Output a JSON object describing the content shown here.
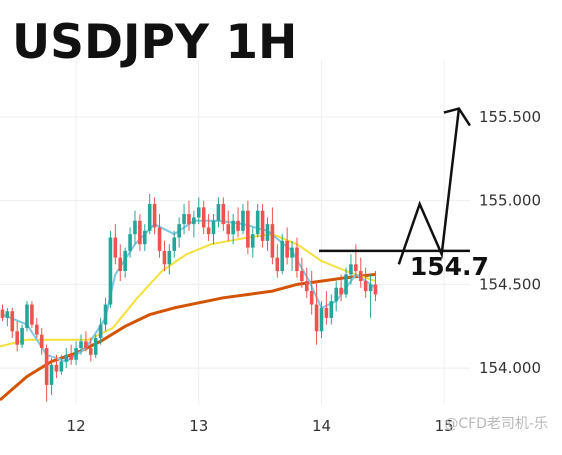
{
  "chart_data": {
    "type": "candlestick",
    "title": "USDJPY 1H",
    "x_ticks": [
      "12",
      "13",
      "14",
      "15"
    ],
    "y_ticks": [
      155.5,
      155.0,
      154.5,
      154.0
    ],
    "y_tick_labels": [
      "155.500",
      "155.000",
      "154.500",
      "154.000"
    ],
    "ylim": [
      153.78,
      155.84
    ],
    "xlim": [
      11.38,
      15.96
    ],
    "grid": true,
    "colors": {
      "up": "#26a69a",
      "down": "#ef5350",
      "ema_fast": "#7ec8e3",
      "ema_mid": "#f3e03a",
      "ema_slow": "#d35400"
    },
    "annotations": {
      "resistance_level": 154.7,
      "resistance_label": "154.7",
      "projection": [
        [
          14.63,
          154.62
        ],
        [
          14.8,
          154.98
        ],
        [
          14.98,
          154.68
        ],
        [
          15.12,
          155.55
        ]
      ]
    },
    "candles": [
      [
        11.4,
        154.35,
        154.38,
        154.28,
        154.3
      ],
      [
        11.44,
        154.3,
        154.36,
        154.25,
        154.34
      ],
      [
        11.48,
        154.34,
        154.36,
        154.18,
        154.22
      ],
      [
        11.52,
        154.22,
        154.28,
        154.1,
        154.14
      ],
      [
        11.56,
        154.14,
        154.26,
        154.12,
        154.24
      ],
      [
        11.6,
        154.24,
        154.4,
        154.22,
        154.38
      ],
      [
        11.64,
        154.38,
        154.4,
        154.24,
        154.26
      ],
      [
        11.68,
        154.26,
        154.3,
        154.18,
        154.2
      ],
      [
        11.72,
        154.2,
        154.24,
        154.08,
        154.12
      ],
      [
        11.76,
        154.12,
        154.14,
        153.8,
        153.9
      ],
      [
        11.8,
        153.9,
        154.06,
        153.84,
        154.02
      ],
      [
        11.84,
        154.02,
        154.08,
        153.94,
        153.98
      ],
      [
        11.88,
        153.98,
        154.08,
        153.96,
        154.04
      ],
      [
        11.92,
        154.04,
        154.12,
        154.0,
        154.08
      ],
      [
        11.96,
        154.08,
        154.14,
        154.02,
        154.05
      ],
      [
        12.0,
        154.05,
        154.16,
        154.02,
        154.12
      ],
      [
        12.04,
        154.12,
        154.2,
        154.08,
        154.16
      ],
      [
        12.08,
        154.16,
        154.22,
        154.1,
        154.12
      ],
      [
        12.12,
        154.12,
        154.18,
        154.04,
        154.08
      ],
      [
        12.16,
        154.08,
        154.2,
        154.06,
        154.18
      ],
      [
        12.2,
        154.18,
        154.3,
        154.14,
        154.26
      ],
      [
        12.24,
        154.26,
        154.42,
        154.22,
        154.38
      ],
      [
        12.28,
        154.38,
        154.82,
        154.36,
        154.78
      ],
      [
        12.32,
        154.78,
        154.86,
        154.62,
        154.66
      ],
      [
        12.36,
        154.66,
        154.74,
        154.52,
        154.58
      ],
      [
        12.4,
        154.58,
        154.72,
        154.54,
        154.7
      ],
      [
        12.44,
        154.7,
        154.84,
        154.66,
        154.8
      ],
      [
        12.48,
        154.8,
        154.94,
        154.74,
        154.88
      ],
      [
        12.52,
        154.88,
        154.92,
        154.7,
        154.74
      ],
      [
        12.56,
        154.74,
        154.86,
        154.7,
        154.82
      ],
      [
        12.6,
        154.82,
        155.04,
        154.8,
        154.98
      ],
      [
        12.64,
        154.98,
        155.02,
        154.8,
        154.84
      ],
      [
        12.68,
        154.84,
        154.92,
        154.66,
        154.7
      ],
      [
        12.72,
        154.7,
        154.76,
        154.58,
        154.62
      ],
      [
        12.76,
        154.62,
        154.74,
        154.56,
        154.7
      ],
      [
        12.8,
        154.7,
        154.82,
        154.66,
        154.78
      ],
      [
        12.84,
        154.78,
        154.9,
        154.72,
        154.86
      ],
      [
        12.88,
        154.86,
        154.98,
        154.8,
        154.92
      ],
      [
        12.92,
        154.92,
        155.0,
        154.82,
        154.86
      ],
      [
        12.96,
        154.86,
        154.94,
        154.78,
        154.9
      ],
      [
        13.0,
        154.9,
        155.02,
        154.86,
        154.96
      ],
      [
        13.04,
        154.96,
        155.0,
        154.8,
        154.84
      ],
      [
        13.08,
        154.84,
        154.92,
        154.76,
        154.8
      ],
      [
        13.12,
        154.8,
        154.92,
        154.74,
        154.88
      ],
      [
        13.16,
        154.88,
        155.02,
        154.84,
        154.98
      ],
      [
        13.2,
        154.98,
        155.02,
        154.82,
        154.86
      ],
      [
        13.24,
        154.86,
        154.94,
        154.76,
        154.8
      ],
      [
        13.28,
        154.8,
        154.92,
        154.74,
        154.88
      ],
      [
        13.32,
        154.88,
        154.96,
        154.78,
        154.82
      ],
      [
        13.36,
        154.82,
        154.98,
        154.8,
        154.94
      ],
      [
        13.4,
        154.94,
        155.0,
        154.68,
        154.72
      ],
      [
        13.44,
        154.72,
        154.84,
        154.66,
        154.8
      ],
      [
        13.48,
        154.8,
        154.98,
        154.78,
        154.94
      ],
      [
        13.52,
        154.94,
        154.98,
        154.72,
        154.76
      ],
      [
        13.56,
        154.76,
        154.9,
        154.7,
        154.86
      ],
      [
        13.6,
        154.86,
        154.96,
        154.62,
        154.66
      ],
      [
        13.64,
        154.66,
        154.74,
        154.54,
        154.58
      ],
      [
        13.68,
        154.58,
        154.8,
        154.56,
        154.76
      ],
      [
        13.72,
        154.76,
        154.84,
        154.62,
        154.66
      ],
      [
        13.76,
        154.66,
        154.76,
        154.58,
        154.72
      ],
      [
        13.8,
        154.72,
        154.78,
        154.54,
        154.58
      ],
      [
        13.84,
        154.58,
        154.66,
        154.48,
        154.52
      ],
      [
        13.88,
        154.52,
        154.6,
        154.42,
        154.46
      ],
      [
        13.92,
        154.46,
        154.58,
        154.32,
        154.38
      ],
      [
        13.96,
        154.38,
        154.52,
        154.14,
        154.22
      ],
      [
        14.0,
        154.22,
        154.4,
        154.18,
        154.36
      ],
      [
        14.04,
        154.36,
        154.46,
        154.26,
        154.3
      ],
      [
        14.08,
        154.3,
        154.44,
        154.26,
        154.4
      ],
      [
        14.12,
        154.4,
        154.52,
        154.34,
        154.48
      ],
      [
        14.16,
        154.48,
        154.56,
        154.4,
        154.44
      ],
      [
        14.2,
        154.44,
        154.6,
        154.42,
        154.56
      ],
      [
        14.24,
        154.56,
        154.68,
        154.5,
        154.62
      ],
      [
        14.28,
        154.62,
        154.74,
        154.54,
        154.58
      ],
      [
        14.32,
        154.58,
        154.66,
        154.48,
        154.52
      ],
      [
        14.36,
        154.52,
        154.6,
        154.42,
        154.46
      ],
      [
        14.4,
        154.46,
        154.56,
        154.3,
        154.5
      ],
      [
        14.44,
        154.5,
        154.58,
        154.4,
        154.44
      ]
    ],
    "ema_fast": [
      [
        11.4,
        154.32
      ],
      [
        11.6,
        154.26
      ],
      [
        11.76,
        154.08
      ],
      [
        11.92,
        154.04
      ],
      [
        12.08,
        154.12
      ],
      [
        12.24,
        154.3
      ],
      [
        12.32,
        154.56
      ],
      [
        12.48,
        154.74
      ],
      [
        12.64,
        154.86
      ],
      [
        12.8,
        154.8
      ],
      [
        12.96,
        154.88
      ],
      [
        13.16,
        154.88
      ],
      [
        13.36,
        154.86
      ],
      [
        13.56,
        154.82
      ],
      [
        13.76,
        154.7
      ],
      [
        13.9,
        154.52
      ],
      [
        14.0,
        154.36
      ],
      [
        14.12,
        154.4
      ],
      [
        14.28,
        154.56
      ],
      [
        14.44,
        154.48
      ]
    ],
    "ema_mid": [
      [
        11.38,
        154.13
      ],
      [
        11.6,
        154.17
      ],
      [
        11.9,
        154.17
      ],
      [
        12.1,
        154.17
      ],
      [
        12.3,
        154.24
      ],
      [
        12.5,
        154.42
      ],
      [
        12.7,
        154.58
      ],
      [
        12.9,
        154.68
      ],
      [
        13.1,
        154.74
      ],
      [
        13.4,
        154.78
      ],
      [
        13.6,
        154.8
      ],
      [
        13.8,
        154.74
      ],
      [
        14.0,
        154.64
      ],
      [
        14.2,
        154.58
      ],
      [
        14.44,
        154.52
      ]
    ],
    "ema_slow": [
      [
        11.38,
        153.81
      ],
      [
        11.6,
        153.95
      ],
      [
        11.8,
        154.04
      ],
      [
        12.0,
        154.09
      ],
      [
        12.2,
        154.16
      ],
      [
        12.4,
        154.25
      ],
      [
        12.6,
        154.32
      ],
      [
        12.8,
        154.36
      ],
      [
        13.0,
        154.39
      ],
      [
        13.2,
        154.42
      ],
      [
        13.4,
        154.44
      ],
      [
        13.6,
        154.46
      ],
      [
        13.8,
        154.5
      ],
      [
        14.0,
        154.52
      ],
      [
        14.2,
        154.54
      ],
      [
        14.44,
        154.56
      ]
    ]
  },
  "watermark": "@CFD老司机-乐"
}
